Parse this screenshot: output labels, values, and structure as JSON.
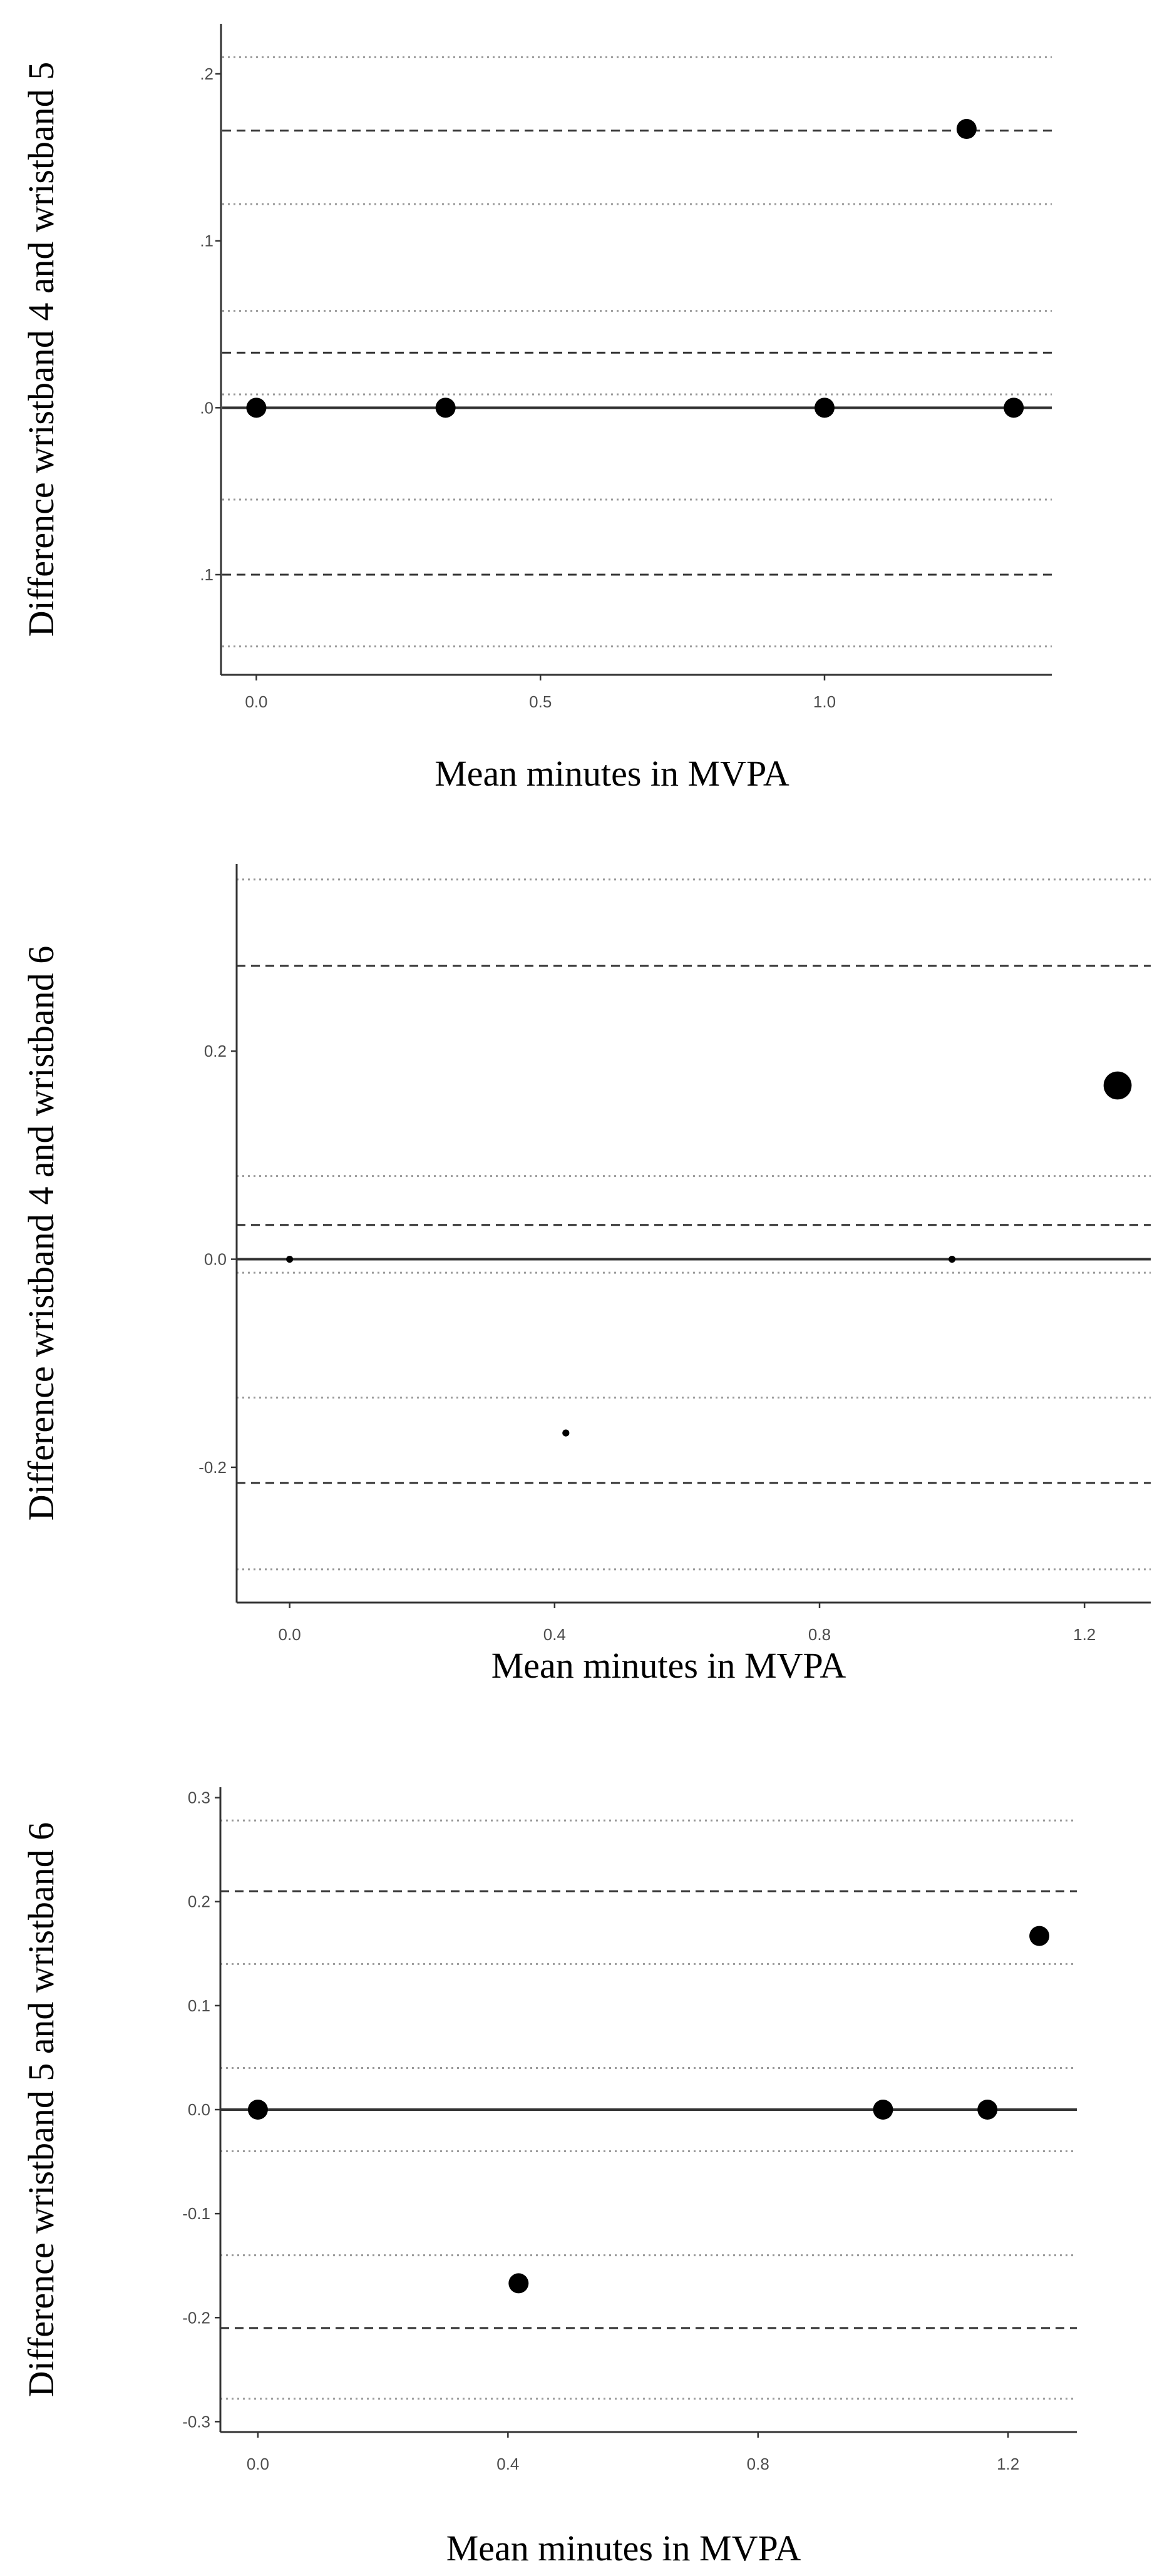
{
  "chart_data": [
    {
      "type": "scatter",
      "title": "",
      "xlabel": "Mean minutes in MVPA",
      "ylabel": "Difference wristband 4 and wristband 5",
      "xlim": [
        -0.06,
        1.4
      ],
      "ylim": [
        -0.16,
        0.23
      ],
      "xticks": [
        0.0,
        0.5,
        1.0
      ],
      "xtick_labels": [
        "0.0",
        "0.5",
        "1.0"
      ],
      "yticks": [
        0.2,
        0.1,
        0.0,
        -0.1
      ],
      "ytick_labels": [
        ".2",
        ".1",
        ".0",
        ".1"
      ],
      "points": [
        {
          "x": 0.0,
          "y": 0.0,
          "size": 1
        },
        {
          "x": 0.333,
          "y": 0.0,
          "size": 1
        },
        {
          "x": 1.0,
          "y": 0.0,
          "size": 1
        },
        {
          "x": 1.25,
          "y": 0.167,
          "size": 1
        },
        {
          "x": 1.333,
          "y": 0.0,
          "size": 1
        }
      ],
      "reference_lines": {
        "solid": [
          0.0
        ],
        "dashed": [
          0.166,
          0.033,
          -0.1
        ],
        "dotted": [
          0.21,
          0.122,
          0.058,
          0.008,
          -0.055,
          -0.143
        ]
      },
      "grid": false
    },
    {
      "type": "scatter",
      "title": "",
      "xlabel": "Mean minutes in MVPA",
      "ylabel": "Difference wristband 4 and wristband 6",
      "xlim": [
        -0.08,
        1.3
      ],
      "ylim": [
        -0.33,
        0.38
      ],
      "xticks": [
        0.0,
        0.4,
        0.8,
        1.2
      ],
      "xtick_labels": [
        "0.0",
        "0.4",
        "0.8",
        "1.2"
      ],
      "yticks": [
        0.2,
        0.0,
        -0.2
      ],
      "ytick_labels": [
        "0.2",
        "0.0",
        "-0.2"
      ],
      "points": [
        {
          "x": 0.0,
          "y": 0.0,
          "size": 0.35
        },
        {
          "x": 0.417,
          "y": -0.167,
          "size": 0.35
        },
        {
          "x": 1.0,
          "y": 0.0,
          "size": 0.35
        },
        {
          "x": 1.25,
          "y": 0.167,
          "size": 1.4
        }
      ],
      "reference_lines": {
        "solid": [
          0.0
        ],
        "dashed": [
          0.282,
          0.033,
          -0.215
        ],
        "dotted": [
          0.365,
          0.08,
          -0.013,
          -0.133,
          -0.298
        ]
      },
      "grid": false
    },
    {
      "type": "scatter",
      "title": "",
      "xlabel": "Mean minutes in MVPA",
      "ylabel": "Difference wristband 5 and wristband 6",
      "xlim": [
        -0.06,
        1.31
      ],
      "ylim": [
        -0.31,
        0.31
      ],
      "xticks": [
        0.0,
        0.4,
        0.8,
        1.2
      ],
      "xtick_labels": [
        "0.0",
        "0.4",
        "0.8",
        "1.2"
      ],
      "yticks": [
        0.3,
        0.2,
        0.1,
        0.0,
        -0.1,
        -0.2,
        -0.3
      ],
      "ytick_labels": [
        "0.3",
        "0.2",
        "0.1",
        "0.0",
        "-0.1",
        "-0.2",
        "-0.3"
      ],
      "points": [
        {
          "x": 0.0,
          "y": 0.0,
          "size": 1
        },
        {
          "x": 0.417,
          "y": -0.167,
          "size": 1
        },
        {
          "x": 1.0,
          "y": 0.0,
          "size": 1
        },
        {
          "x": 1.167,
          "y": 0.0,
          "size": 1
        },
        {
          "x": 1.25,
          "y": 0.167,
          "size": 1
        }
      ],
      "reference_lines": {
        "solid": [
          0.0
        ],
        "dashed": [
          0.21,
          -0.21
        ],
        "dotted": [
          0.278,
          0.14,
          0.04,
          -0.04,
          -0.14,
          -0.278
        ]
      },
      "grid": false
    }
  ]
}
